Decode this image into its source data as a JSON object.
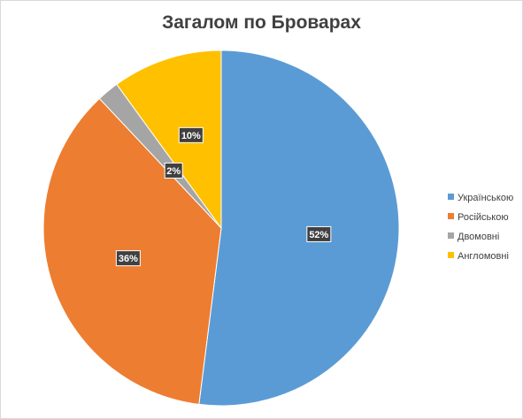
{
  "chart_data": {
    "type": "pie",
    "title": "Загалом по Броварах",
    "categories": [
      "Українською",
      "Російською",
      "Двомовні",
      "Англомовні"
    ],
    "values": [
      52,
      36,
      2,
      10
    ],
    "data_labels": [
      "52%",
      "36%",
      "2%",
      "10%"
    ],
    "colors": [
      "#5b9bd5",
      "#ed7d31",
      "#a5a5a5",
      "#ffc000"
    ],
    "start_angle_deg": 0,
    "direction": "clockwise",
    "legend_position": "right"
  }
}
